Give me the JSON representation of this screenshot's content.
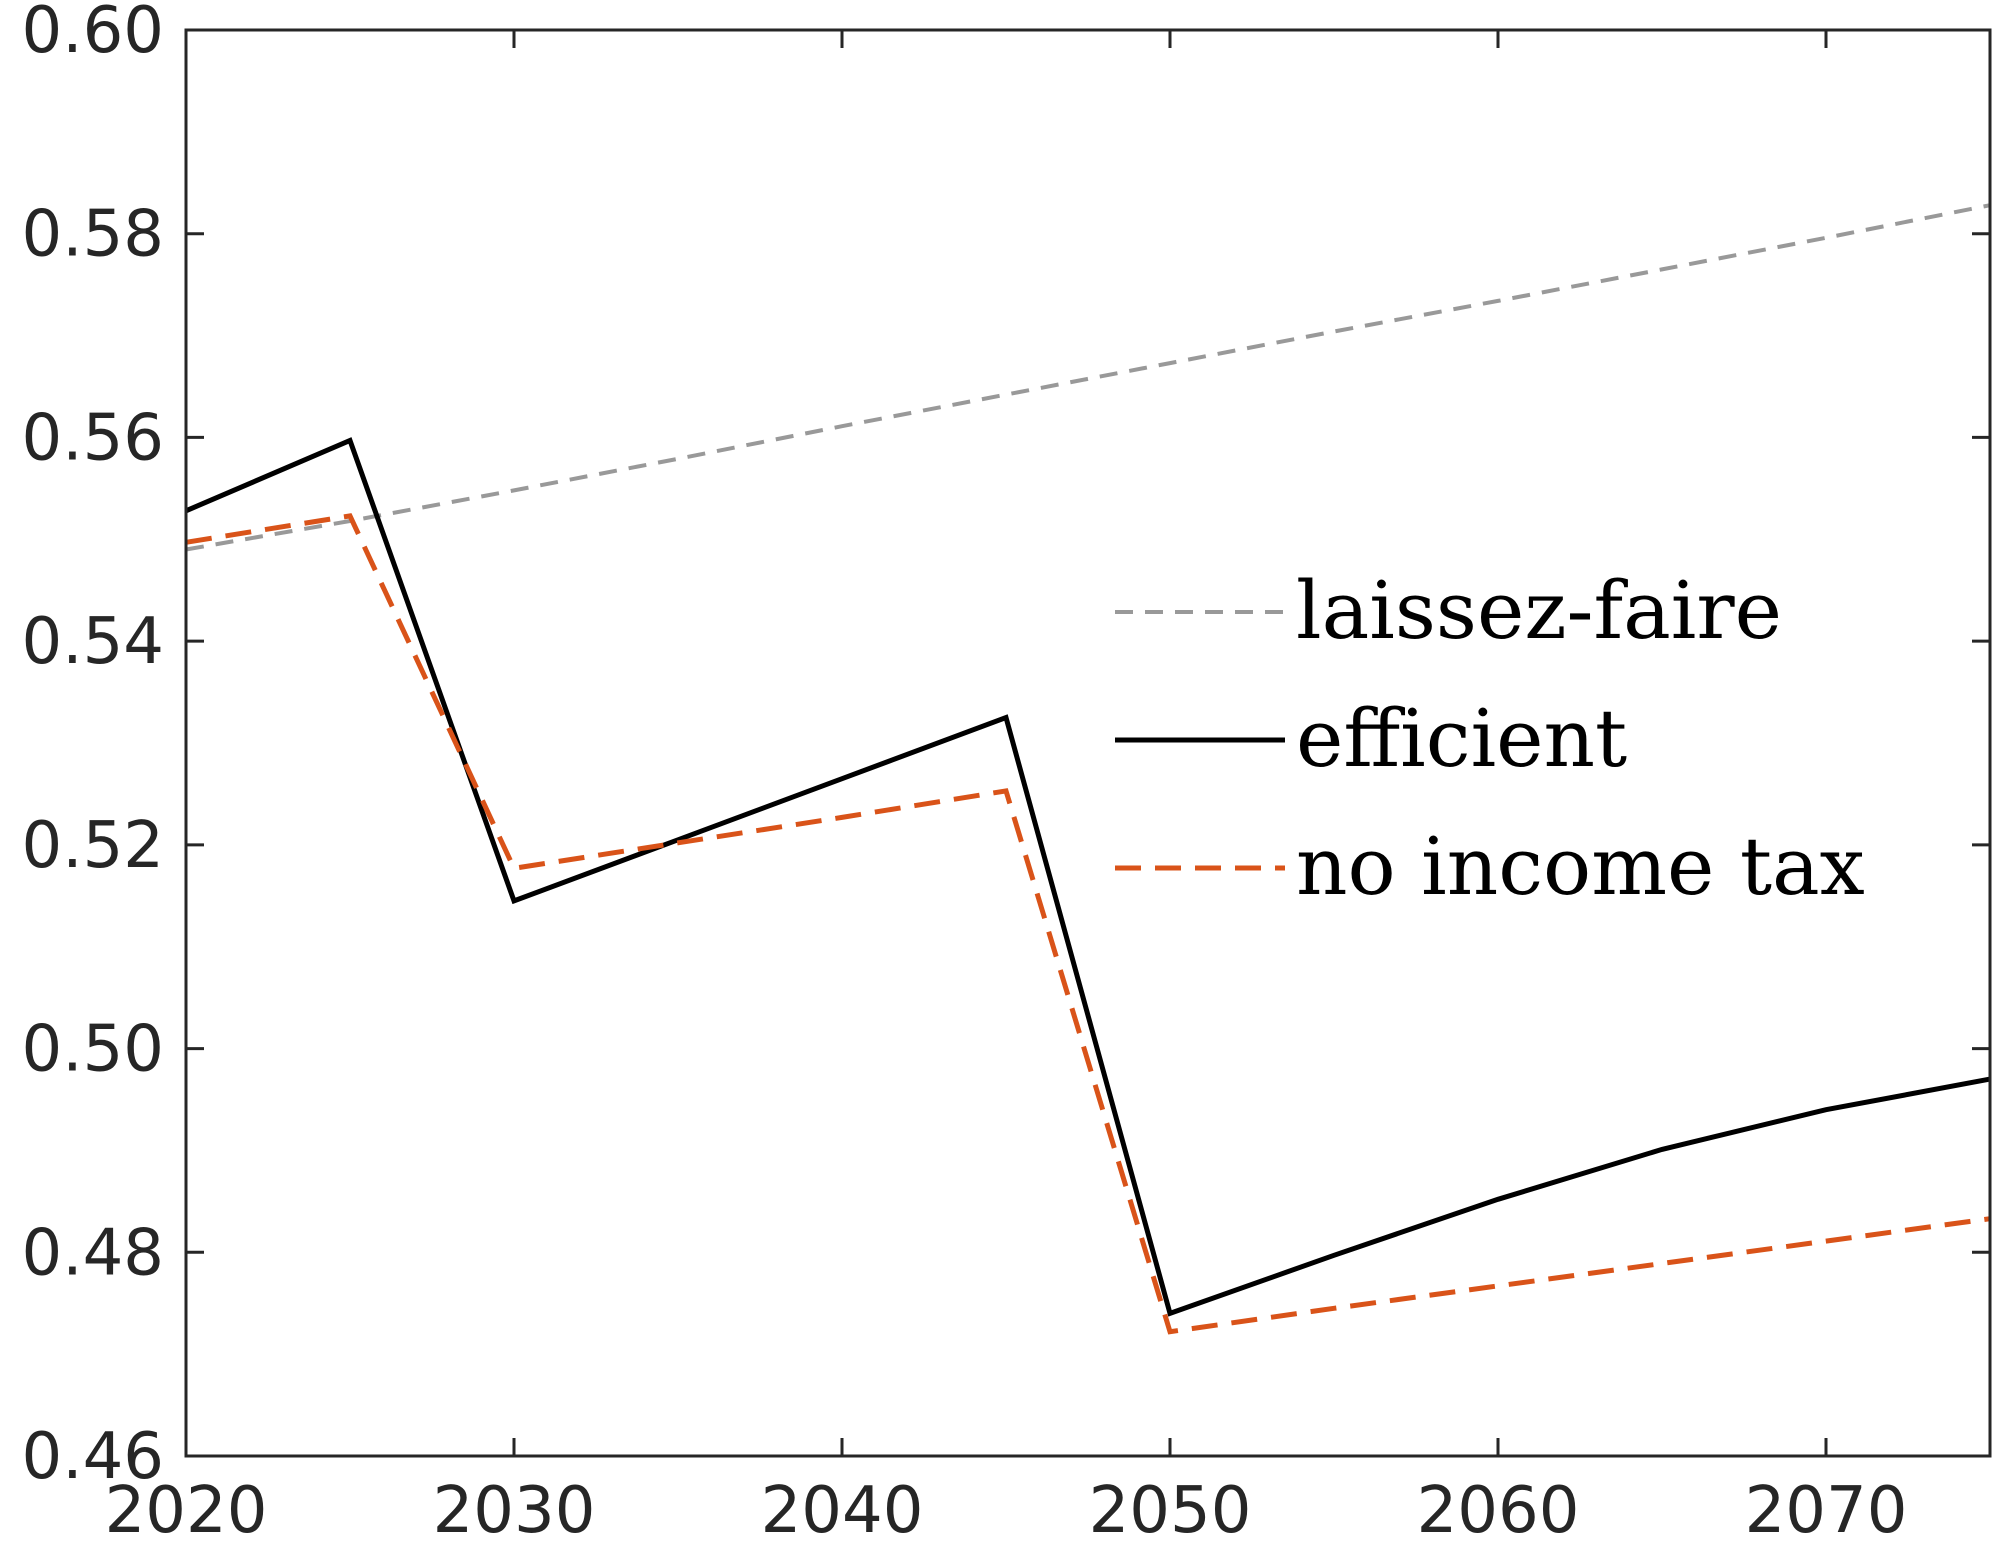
{
  "chart_data": {
    "type": "line",
    "title": "",
    "xlabel": "",
    "ylabel": "",
    "xlim": [
      2020,
      2075
    ],
    "ylim": [
      0.46,
      0.6
    ],
    "xticks": [
      "2020",
      "2030",
      "2040",
      "2050",
      "2060",
      "2070"
    ],
    "yticks": [
      "0.46",
      "0.48",
      "0.50",
      "0.52",
      "0.54",
      "0.56",
      "0.58",
      "0.60"
    ],
    "grid": false,
    "legend_position": "right",
    "series": [
      {
        "name": "laissez-faire",
        "color": "#999999",
        "style": "dashed",
        "x": [
          2020,
          2025,
          2030,
          2035,
          2040,
          2045,
          2050,
          2055,
          2060,
          2065,
          2070,
          2075
        ],
        "y": [
          0.549,
          0.5518,
          0.5548,
          0.5579,
          0.5611,
          0.5642,
          0.5673,
          0.5704,
          0.5734,
          0.5765,
          0.5796,
          0.5828
        ]
      },
      {
        "name": "efficient",
        "color": "#000000",
        "style": "solid",
        "x": [
          2020,
          2025,
          2030,
          2035,
          2040,
          2045,
          2050,
          2055,
          2060,
          2065,
          2070,
          2075
        ],
        "y": [
          0.5528,
          0.5597,
          0.5145,
          0.5205,
          0.5265,
          0.5325,
          0.474,
          0.4797,
          0.4852,
          0.4901,
          0.494,
          0.497
        ]
      },
      {
        "name": "no income tax",
        "color": "#D95319",
        "style": "dashed",
        "x": [
          2020,
          2025,
          2030,
          2035,
          2040,
          2045,
          2050,
          2055,
          2060,
          2065,
          2070,
          2075
        ],
        "y": [
          0.5497,
          0.5523,
          0.5177,
          0.5202,
          0.5227,
          0.5253,
          0.4722,
          0.4745,
          0.4767,
          0.4789,
          0.4811,
          0.4833
        ]
      }
    ]
  }
}
